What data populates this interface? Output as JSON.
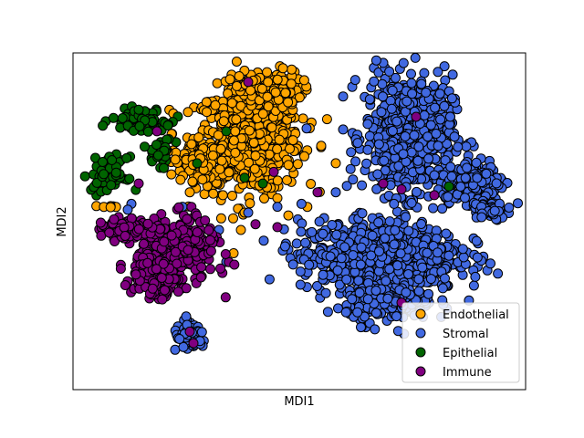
{
  "chart_data": {
    "type": "scatter",
    "xlabel": "MDI1",
    "ylabel": "MDI2",
    "xticks": false,
    "yticks": false,
    "xlim": [
      -62,
      62
    ],
    "ylim": [
      -58,
      58
    ],
    "grid": false,
    "legend": {
      "placement": "lower right",
      "entries": [
        "Endothelial",
        "Stromal",
        "Epithelial",
        "Immune"
      ]
    },
    "marker_edge_color": "#000000",
    "series": [
      {
        "name": "Endothelial",
        "color": "#FFA500",
        "clusters": [
          {
            "center": [
              -14,
              28
            ],
            "spread": [
              12,
              15
            ],
            "count": 700
          },
          {
            "center": [
              -8,
              45
            ],
            "spread": [
              7,
              6
            ],
            "count": 160
          },
          {
            "center": [
              -27,
              20
            ],
            "spread": [
              6,
              5
            ],
            "count": 120
          },
          {
            "center": [
              -52,
              5
            ],
            "spread": [
              2,
              1
            ],
            "count": 6
          }
        ],
        "points": [
          [
            -23,
            40
          ],
          [
            -6,
            8
          ],
          [
            -36,
            24
          ],
          [
            -18,
            -11
          ],
          [
            -16,
            -3
          ],
          [
            -30,
            10
          ],
          [
            10,
            20
          ],
          [
            6,
            26
          ],
          [
            -3,
            2
          ],
          [
            -15,
            3
          ]
        ]
      },
      {
        "name": "Stromal",
        "color": "#4169E1",
        "clusters": [
          {
            "center": [
              30,
              30
            ],
            "spread": [
              10,
              17
            ],
            "count": 650
          },
          {
            "center": [
              48,
              14
            ],
            "spread": [
              7,
              6
            ],
            "count": 200
          },
          {
            "center": [
              22,
              -12
            ],
            "spread": [
              18,
              10
            ],
            "count": 800
          },
          {
            "center": [
              25,
              -28
            ],
            "spread": [
              10,
              6
            ],
            "count": 180
          },
          {
            "center": [
              -30,
              -40
            ],
            "spread": [
              4,
              4
            ],
            "count": 60
          },
          {
            "center": [
              52,
              4
            ],
            "spread": [
              4,
              3
            ],
            "count": 80
          }
        ],
        "points": [
          [
            -46,
            6
          ],
          [
            -47,
            4
          ],
          [
            -20,
            -14
          ],
          [
            -22,
            -3
          ],
          [
            -6,
            5
          ],
          [
            10,
            10
          ],
          [
            16,
            27
          ],
          [
            2,
            32
          ],
          [
            -14,
            3
          ],
          [
            -32,
            5
          ]
        ]
      },
      {
        "name": "Epithelial",
        "color": "#006400",
        "clusters": [
          {
            "center": [
              -44,
              35
            ],
            "spread": [
              6,
              3
            ],
            "count": 90
          },
          {
            "center": [
              -52,
              16
            ],
            "spread": [
              4,
              5
            ],
            "count": 70
          },
          {
            "center": [
              -38,
              24
            ],
            "spread": [
              3,
              4
            ],
            "count": 30
          }
        ],
        "points": [
          [
            -20,
            31
          ],
          [
            -10,
            13
          ],
          [
            41,
            12
          ],
          [
            -15,
            15
          ],
          [
            -36,
            33
          ],
          [
            -28,
            20
          ]
        ]
      },
      {
        "name": "Immune",
        "color": "#800080",
        "clusters": [
          {
            "center": [
              -34,
              -10
            ],
            "spread": [
              9,
              9
            ],
            "count": 380
          },
          {
            "center": [
              -48,
              -3
            ],
            "spread": [
              5,
              3
            ],
            "count": 70
          },
          {
            "center": [
              -40,
              -20
            ],
            "spread": [
              5,
              5
            ],
            "count": 90
          }
        ],
        "points": [
          [
            -39,
            31
          ],
          [
            -44,
            13
          ],
          [
            -14,
            48
          ],
          [
            -7,
            17
          ],
          [
            5,
            10
          ],
          [
            -6,
            -2
          ],
          [
            23,
            13
          ],
          [
            28,
            11
          ],
          [
            32,
            36
          ],
          [
            37,
            9
          ],
          [
            28,
            -28
          ],
          [
            -30,
            -38
          ],
          [
            -29,
            -42
          ],
          [
            -12,
            -1
          ]
        ]
      }
    ]
  }
}
